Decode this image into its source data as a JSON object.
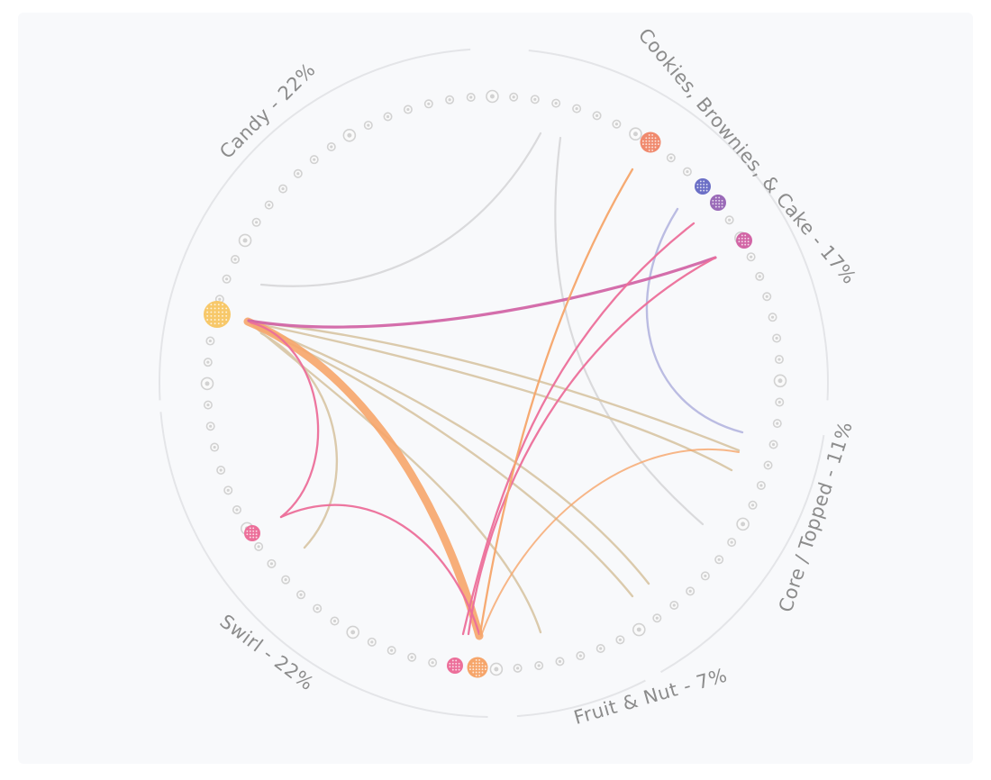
{
  "categories": [
    {
      "key": "candy",
      "label": "Candy - 22%"
    },
    {
      "key": "cookies",
      "label": "Cookies, Brownies, & Cake - 17%"
    },
    {
      "key": "core",
      "label": "Core / Topped - 11%"
    },
    {
      "key": "fruit",
      "label": "Fruit & Nut - 7%"
    },
    {
      "key": "swirl",
      "label": "Swirl - 22%"
    }
  ],
  "colors": {
    "background": "#f8f9fb",
    "ring": "#e4e5e8",
    "inactive_node": "#d2d2d2",
    "yellow": "#f7c86a",
    "orange": "#f6a56a",
    "salmon": "#f08a6e",
    "blue": "#6b6fc6",
    "purple": "#9a6ab8",
    "magenta": "#d266a6",
    "pink": "#ec6f9a",
    "tan": "#d9c7a8",
    "lavender": "#b7b8e0",
    "grey_link": "#d6d6d8"
  },
  "highlighted_nodes": [
    {
      "name": "node-yellow-candy",
      "color": "yellow",
      "size": "large"
    },
    {
      "name": "node-salmon-cookies",
      "color": "salmon",
      "size": "medium"
    },
    {
      "name": "node-blue-cookies",
      "color": "blue",
      "size": "small"
    },
    {
      "name": "node-purple-cookies",
      "color": "purple",
      "size": "small"
    },
    {
      "name": "node-magenta-cookies",
      "color": "magenta",
      "size": "small"
    },
    {
      "name": "node-pink-swirl",
      "color": "pink",
      "size": "small"
    },
    {
      "name": "node-pink-bottom",
      "color": "pink",
      "size": "small"
    },
    {
      "name": "node-orange-bottom",
      "color": "orange",
      "size": "medium"
    }
  ]
}
